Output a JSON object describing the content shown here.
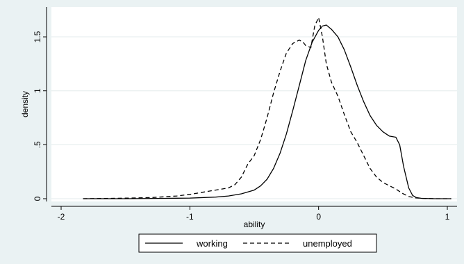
{
  "chart_data": {
    "type": "line",
    "title": "",
    "xlabel": "ability",
    "ylabel": "density",
    "xlim": [
      -2,
      1
    ],
    "ylim": [
      0,
      1.7
    ],
    "x_ticks": [
      -2,
      -1,
      0,
      1
    ],
    "x_tick_labels": [
      "-2",
      "-1",
      "0",
      "1"
    ],
    "y_ticks": [
      0,
      0.5,
      1,
      1.5
    ],
    "y_tick_labels": [
      "0",
      ".5",
      "1",
      "1.5"
    ],
    "grid": "horizontal",
    "legend_position": "bottom",
    "series": [
      {
        "name": "working",
        "style": "solid",
        "color": "#000000",
        "x": [
          -1.83,
          -1.5,
          -1.2,
          -1.0,
          -0.8,
          -0.7,
          -0.6,
          -0.5,
          -0.45,
          -0.4,
          -0.35,
          -0.3,
          -0.25,
          -0.2,
          -0.15,
          -0.1,
          -0.05,
          0.0,
          0.03,
          0.06,
          0.1,
          0.15,
          0.2,
          0.25,
          0.3,
          0.35,
          0.4,
          0.45,
          0.5,
          0.55,
          0.6,
          0.63,
          0.66,
          0.7,
          0.73,
          0.76,
          0.8,
          0.9,
          1.03
        ],
        "y": [
          0.0,
          0.0,
          0.003,
          0.006,
          0.015,
          0.025,
          0.045,
          0.08,
          0.12,
          0.18,
          0.28,
          0.42,
          0.6,
          0.82,
          1.05,
          1.28,
          1.45,
          1.56,
          1.6,
          1.61,
          1.57,
          1.5,
          1.38,
          1.22,
          1.05,
          0.9,
          0.77,
          0.68,
          0.62,
          0.58,
          0.57,
          0.5,
          0.3,
          0.1,
          0.03,
          0.01,
          0.003,
          0.0,
          0.0
        ]
      },
      {
        "name": "unemployed",
        "style": "dashed",
        "color": "#000000",
        "x": [
          -1.83,
          -1.5,
          -1.3,
          -1.1,
          -1.0,
          -0.9,
          -0.8,
          -0.7,
          -0.65,
          -0.6,
          -0.55,
          -0.5,
          -0.45,
          -0.4,
          -0.35,
          -0.3,
          -0.25,
          -0.2,
          -0.15,
          -0.12,
          -0.1,
          -0.06,
          -0.03,
          0.0,
          0.03,
          0.06,
          0.1,
          0.15,
          0.2,
          0.25,
          0.3,
          0.35,
          0.4,
          0.45,
          0.5,
          0.55,
          0.6,
          0.65,
          0.7,
          0.75,
          0.8,
          0.9,
          1.03
        ],
        "y": [
          0.0,
          0.005,
          0.01,
          0.025,
          0.04,
          0.06,
          0.08,
          0.1,
          0.13,
          0.2,
          0.32,
          0.4,
          0.55,
          0.75,
          0.98,
          1.18,
          1.35,
          1.44,
          1.47,
          1.45,
          1.42,
          1.4,
          1.6,
          1.68,
          1.5,
          1.25,
          1.08,
          0.95,
          0.78,
          0.62,
          0.52,
          0.4,
          0.28,
          0.2,
          0.15,
          0.12,
          0.09,
          0.05,
          0.02,
          0.008,
          0.003,
          0.0,
          0.0
        ]
      }
    ]
  }
}
